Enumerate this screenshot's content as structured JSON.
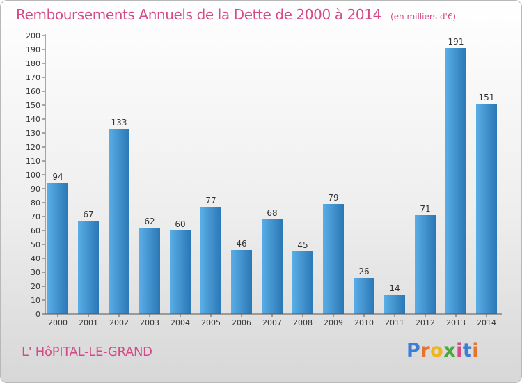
{
  "header": {
    "title": "Remboursements Annuels de la Dette de 2000 à 2014",
    "subtitle": "(en milliers d'€)"
  },
  "footer": {
    "commune": "L' HôPITAL-LE-GRAND",
    "logo_letters": [
      "P",
      "r",
      "o",
      "x",
      "i",
      "t",
      "i"
    ],
    "logo_colors": [
      "#3b7fd4",
      "#e8732a",
      "#f2b41c",
      "#4aa83a",
      "#d54a86",
      "#3b7fd4",
      "#e8732a"
    ]
  },
  "chart_data": {
    "type": "bar",
    "title": "Remboursements Annuels de la Dette de 2000 à 2014",
    "categories": [
      "2000",
      "2001",
      "2002",
      "2003",
      "2004",
      "2005",
      "2006",
      "2007",
      "2008",
      "2009",
      "2010",
      "2011",
      "2012",
      "2013",
      "2014"
    ],
    "values": [
      94,
      67,
      133,
      62,
      60,
      77,
      46,
      68,
      45,
      79,
      26,
      14,
      71,
      191,
      151
    ],
    "ylim": [
      0,
      200
    ],
    "ytick_step": 10,
    "grid": false,
    "bar_color_light": "#5aaee6",
    "bar_color_dark": "#2a77b5"
  }
}
